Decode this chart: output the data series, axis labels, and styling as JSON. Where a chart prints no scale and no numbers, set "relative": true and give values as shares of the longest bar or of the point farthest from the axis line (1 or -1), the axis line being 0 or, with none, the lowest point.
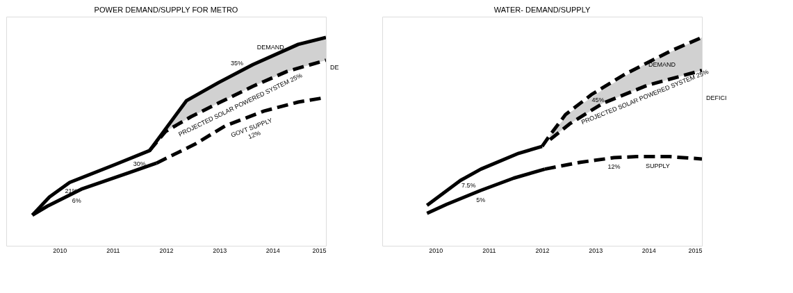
{
  "chart_data": [
    {
      "type": "line",
      "title": "POWER DEMAND/SUPPLY FOR METRO",
      "relative": true,
      "xlim": [
        2009,
        2015
      ],
      "xticks": [
        2010,
        2011,
        2012,
        2013,
        2014,
        2015
      ],
      "tick_labels": "x",
      "grid": false,
      "series": [
        {
          "color": "#000000",
          "line_style": "solid",
          "x": [
            2009.49,
            2009.81,
            2010.19,
            2011.05,
            2011.69,
            2012.38,
            2012.98,
            2013.63,
            2014.48,
            2015
          ],
          "values": [
            0.147,
            0.234,
            0.304,
            0.391,
            0.457,
            0.696,
            0.783,
            0.87,
            0.967,
            1.0
          ]
        },
        {
          "color": "#000000",
          "line_style": "dashed",
          "x": [
            2011.69,
            2011.99,
            2012.47,
            2012.98,
            2013.63,
            2014.27,
            2015
          ],
          "values": [
            0.457,
            0.549,
            0.62,
            0.685,
            0.766,
            0.837,
            0.891
          ],
          "lower": [
            0.457,
            0.549,
            0.62,
            0.685,
            0.766,
            0.837,
            0.891
          ],
          "upper": [
            0.457,
            0.561,
            0.71,
            0.783,
            0.87,
            0.945,
            1.0
          ]
        },
        {
          "color": "#000000",
          "line_style": "solid",
          "x": [
            2009.49,
            2009.77,
            2010.41,
            2011.27,
            2011.82
          ],
          "values": [
            0.147,
            0.19,
            0.272,
            0.348,
            0.397
          ]
        },
        {
          "color": "#000000",
          "line_style": "dashed",
          "x": [
            2011.82,
            2012.55,
            2013.11,
            2013.84,
            2014.48,
            2015
          ],
          "values": [
            0.397,
            0.489,
            0.576,
            0.647,
            0.69,
            0.712
          ]
        }
      ],
      "annotations": [
        {
          "text": "21%",
          "x": 2010.22,
          "y": 0.307
        },
        {
          "text": "6%",
          "x": 2010.32,
          "y": 0.26
        },
        {
          "text": "30%",
          "x": 2011.5,
          "y": 0.437
        },
        {
          "text": "35%",
          "x": 2013.33,
          "y": 0.83
        },
        {
          "text": "DEMAND",
          "x": 2013.96,
          "y": 0.908
        },
        {
          "text": "PROJECTED SOLAR POWERED SYSTEM 25%",
          "x": 2013.3,
          "y": 0.725
        },
        {
          "text": "GOVT SUPPLY\n12%",
          "x": 2013.53,
          "y": 0.617
        },
        "DE"
      ]
    },
    {
      "type": "line",
      "title": "WATER- DEMAND/SUPPLY",
      "relative": true,
      "xlim": [
        2009,
        2015
      ],
      "xticks": [
        2010,
        2011,
        2012,
        2013,
        2014,
        2015
      ],
      "tick_labels": "x",
      "grid": false,
      "series": [
        {
          "color": "#000000",
          "line_style": "solid",
          "x": [
            2009.84,
            2010.47,
            2010.85,
            2011.56,
            2012.0
          ],
          "values": [
            0.194,
            0.314,
            0.368,
            0.444,
            0.477
          ]
        },
        {
          "color": "#000000",
          "line_style": "dashed",
          "x": [
            2012.0,
            2012.15,
            2012.44,
            2012.94,
            2013.57,
            2014.41,
            2015
          ],
          "values": [
            0.477,
            0.532,
            0.63,
            0.728,
            0.826,
            0.935,
            1.0
          ]
        },
        {
          "color": "#000000",
          "line_style": "dashed",
          "x": [
            2012.15,
            2012.52,
            2013.14,
            2013.98,
            2015
          ],
          "values": [
            0.51,
            0.586,
            0.684,
            0.771,
            0.842
          ],
          "lower": [
            0.51,
            0.586,
            0.684,
            0.771,
            0.842
          ],
          "upper": [
            0.532,
            0.64,
            0.75,
            0.88,
            1.0
          ]
        },
        {
          "color": "#000000",
          "line_style": "solid",
          "x": [
            2009.84,
            2010.21,
            2010.84,
            2011.47,
            2012.05
          ],
          "values": [
            0.156,
            0.199,
            0.265,
            0.325,
            0.368
          ]
        },
        {
          "color": "#000000",
          "line_style": "dashed",
          "x": [
            2012.05,
            2012.72,
            2013.35,
            2013.77,
            2014.39,
            2015
          ],
          "values": [
            0.368,
            0.401,
            0.423,
            0.428,
            0.428,
            0.417
          ]
        }
      ],
      "annotations": [
        {
          "text": "7.5%",
          "x": 2010.62,
          "y": 0.335
        },
        {
          "text": "5%",
          "x": 2010.85,
          "y": 0.265
        },
        {
          "text": "45%",
          "x": 2013.05,
          "y": 0.745
        },
        {
          "text": "DEMAND",
          "x": 2014.25,
          "y": 0.914
        },
        {
          "text": "PROJECTED SOLAR POWERED SYSTEM 25%",
          "x": 2013.85,
          "y": 0.764
        },
        {
          "text": "12%",
          "x": 2013.35,
          "y": 0.423
        },
        {
          "text": "SUPPLY",
          "x": 2014.17,
          "y": 0.428
        },
        "DEFICI"
      ]
    }
  ]
}
